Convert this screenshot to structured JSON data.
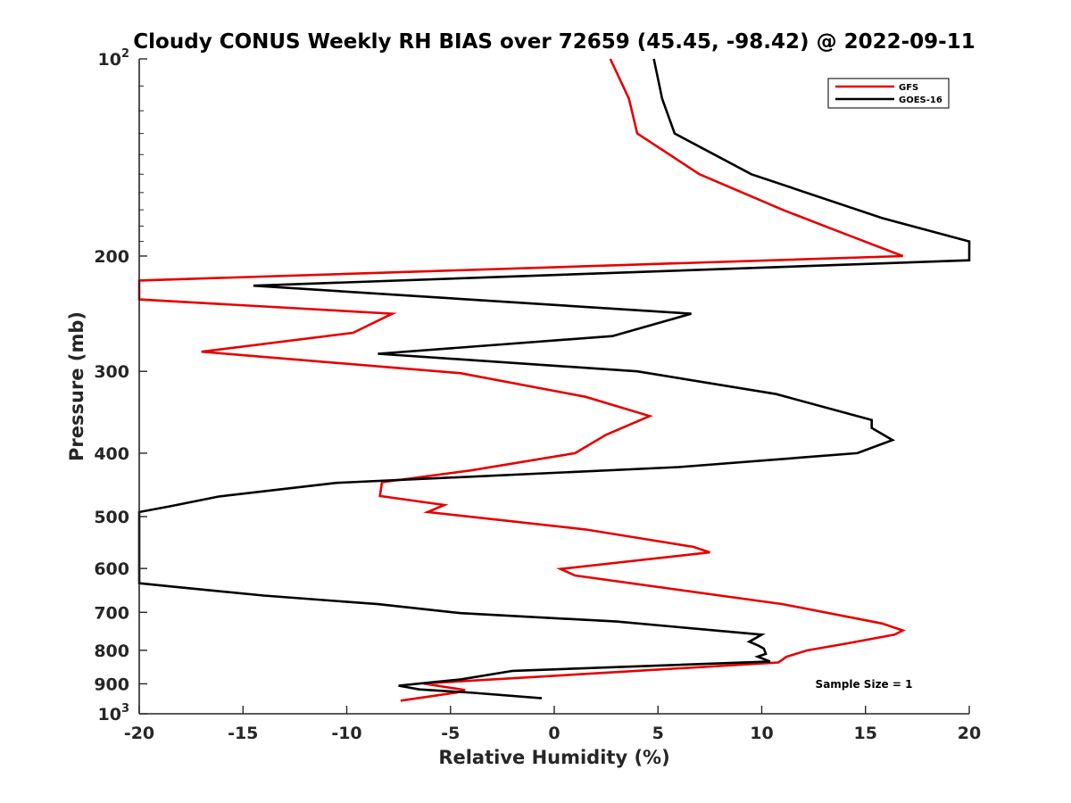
{
  "chart_data": {
    "type": "line",
    "title": "Cloudy CONUS Weekly RH BIAS over 72659 (45.45, -98.42) @ 2022-09-11",
    "xlabel": "Relative Humidity (%)",
    "ylabel": "Pressure (mb)",
    "xlim": [
      -20,
      20
    ],
    "ylim": [
      100,
      1000
    ],
    "y_scale": "log",
    "y_reversed": true,
    "grid": false,
    "legend_position": "top-right",
    "x_ticks": [
      {
        "value": -20,
        "label": "-20"
      },
      {
        "value": -15,
        "label": "-15"
      },
      {
        "value": -10,
        "label": "-10"
      },
      {
        "value": -5,
        "label": "-5"
      },
      {
        "value": 0,
        "label": "0"
      },
      {
        "value": 5,
        "label": "5"
      },
      {
        "value": 10,
        "label": "10"
      },
      {
        "value": 15,
        "label": "15"
      },
      {
        "value": 20,
        "label": "20"
      }
    ],
    "y_ticks": [
      {
        "value": 100,
        "base": "10",
        "exp": "2"
      },
      {
        "value": 200,
        "label": "200"
      },
      {
        "value": 300,
        "label": "300"
      },
      {
        "value": 400,
        "label": "400"
      },
      {
        "value": 500,
        "label": "500"
      },
      {
        "value": 600,
        "label": "600"
      },
      {
        "value": 700,
        "label": "700"
      },
      {
        "value": 800,
        "label": "800"
      },
      {
        "value": 900,
        "label": "900"
      },
      {
        "value": 1000,
        "base": "10",
        "exp": "3"
      }
    ],
    "series": [
      {
        "name": "GFS",
        "color": "#e60000",
        "points": [
          [
            2.7,
            100
          ],
          [
            3.6,
            115
          ],
          [
            4,
            130
          ],
          [
            7,
            150
          ],
          [
            11,
            170
          ],
          [
            14,
            185
          ],
          [
            16.8,
            200
          ],
          [
            -20,
            218
          ],
          [
            -20,
            233
          ],
          [
            -7.8,
            245
          ],
          [
            -9.7,
            262
          ],
          [
            -17,
            280
          ],
          [
            -4.5,
            302
          ],
          [
            1.5,
            328
          ],
          [
            4.6,
            351
          ],
          [
            2.5,
            375
          ],
          [
            1,
            400
          ],
          [
            -4,
            425
          ],
          [
            -8.3,
            443
          ],
          [
            -8.4,
            465
          ],
          [
            -5.3,
            480
          ],
          [
            -6.1,
            492
          ],
          [
            1.5,
            523
          ],
          [
            6.7,
            556
          ],
          [
            7.5,
            567
          ],
          [
            0.3,
            601
          ],
          [
            1,
            615
          ],
          [
            11,
            680
          ],
          [
            15.8,
            728
          ],
          [
            16.8,
            746
          ],
          [
            16.4,
            757
          ],
          [
            14,
            782
          ],
          [
            12.2,
            800
          ],
          [
            11.2,
            818
          ],
          [
            10.8,
            835
          ],
          [
            -6.3,
            899
          ],
          [
            -4.3,
            920
          ],
          [
            -4.7,
            928
          ],
          [
            -7.4,
            955
          ]
        ]
      },
      {
        "name": "GOES-16",
        "color": "#000000",
        "points": [
          [
            4.8,
            100
          ],
          [
            5.2,
            115
          ],
          [
            5.8,
            130
          ],
          [
            9.5,
            150
          ],
          [
            15.8,
            175
          ],
          [
            20,
            190
          ],
          [
            20,
            203
          ],
          [
            -14.5,
            222
          ],
          [
            6.6,
            245
          ],
          [
            2.8,
            265
          ],
          [
            -8.5,
            282
          ],
          [
            4,
            300
          ],
          [
            10.7,
            325
          ],
          [
            15.3,
            356
          ],
          [
            15.3,
            366
          ],
          [
            16.3,
            382
          ],
          [
            14.6,
            400
          ],
          [
            6,
            420
          ],
          [
            -10.5,
            444
          ],
          [
            -16.2,
            466
          ],
          [
            -18.5,
            482
          ],
          [
            -20,
            492
          ],
          [
            -20,
            632
          ],
          [
            -18.3,
            640
          ],
          [
            -14,
            660
          ],
          [
            -8.5,
            680
          ],
          [
            -4.5,
            702
          ],
          [
            3,
            723
          ],
          [
            10,
            757
          ],
          [
            9.4,
            776
          ],
          [
            9.8,
            786
          ],
          [
            10.1,
            795
          ],
          [
            10.2,
            810
          ],
          [
            9.8,
            818
          ],
          [
            10.4,
            832
          ],
          [
            -2,
            860
          ],
          [
            -4.5,
            886
          ],
          [
            -7.5,
            906
          ],
          [
            -7,
            912
          ],
          [
            -6.5,
            918
          ],
          [
            -3.9,
            929
          ],
          [
            -0.6,
            947
          ]
        ]
      }
    ],
    "annotation": "Sample Size = 1"
  }
}
